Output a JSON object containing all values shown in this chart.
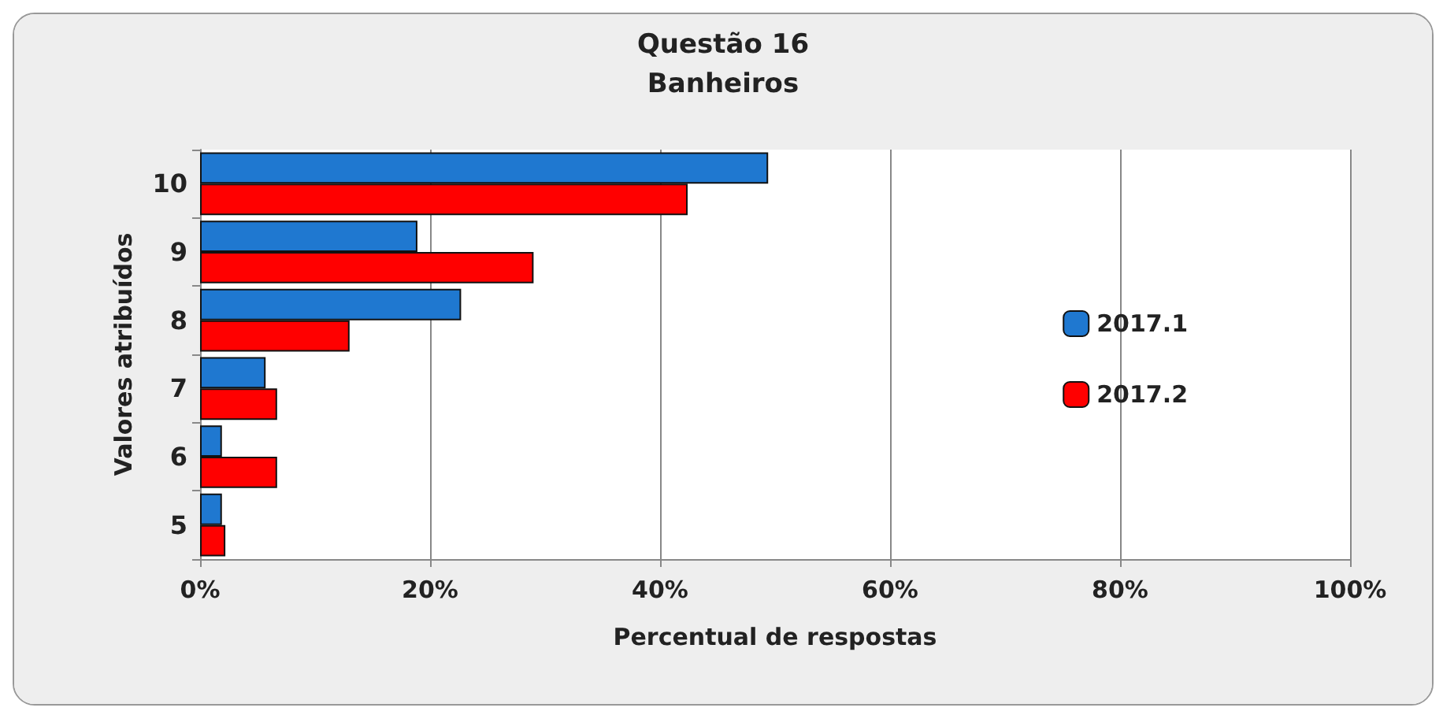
{
  "chart_data": {
    "type": "bar",
    "orientation": "horizontal",
    "title": "Questão 16",
    "subtitle": "Banheiros",
    "xlabel": "Percentual de respostas",
    "ylabel": "Valores atribuídos",
    "categories": [
      "10",
      "9",
      "8",
      "7",
      "6",
      "5"
    ],
    "series": [
      {
        "name": "2017.1",
        "color": "#1f78d0",
        "values": [
          49.4,
          18.9,
          22.7,
          5.7,
          1.9,
          1.9
        ]
      },
      {
        "name": "2017.2",
        "color": "#ff0000",
        "values": [
          42.4,
          29,
          13,
          6.7,
          6.7,
          2.2
        ]
      }
    ],
    "xlim": [
      0,
      100
    ],
    "xticks": [
      {
        "value": 0,
        "label": "0%"
      },
      {
        "value": 20,
        "label": "20%"
      },
      {
        "value": 40,
        "label": "40%"
      },
      {
        "value": 60,
        "label": "60%"
      },
      {
        "value": 80,
        "label": "80%"
      },
      {
        "value": 100,
        "label": "100%"
      }
    ],
    "grid": "x",
    "legend": "right"
  }
}
